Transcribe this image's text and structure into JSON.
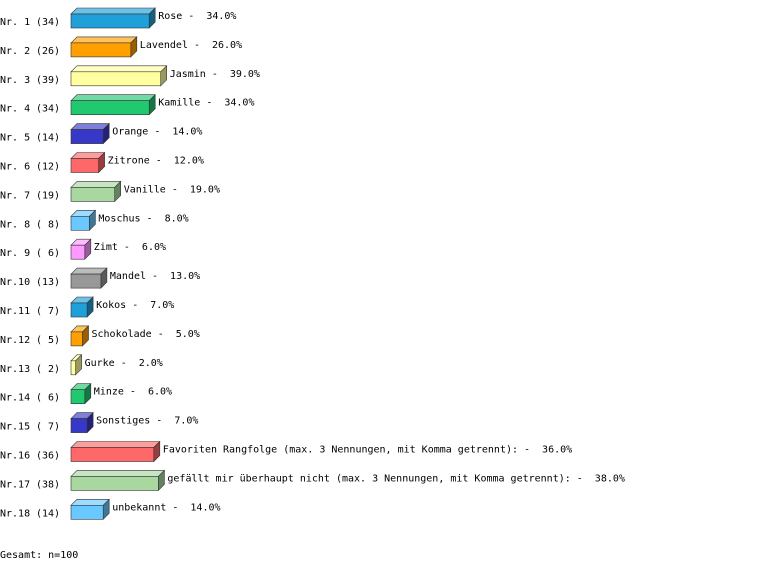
{
  "chart_data": {
    "type": "hbar3d",
    "categories": [
      "Nr. 1",
      "Nr. 2",
      "Nr. 3",
      "Nr. 4",
      "Nr. 5",
      "Nr. 6",
      "Nr. 7",
      "Nr. 8",
      "Nr. 9",
      "Nr.10",
      "Nr.11",
      "Nr.12",
      "Nr.13",
      "Nr.14",
      "Nr.15",
      "Nr.16",
      "Nr.17",
      "Nr.18"
    ],
    "count_labels": [
      "(34)",
      "(26)",
      "(39)",
      "(34)",
      "(14)",
      "(12)",
      "(19)",
      "( 8)",
      "( 6)",
      "(13)",
      "( 7)",
      "( 5)",
      "( 2)",
      "( 6)",
      "( 7)",
      "(36)",
      "(38)",
      "(14)"
    ],
    "names": [
      "Rose",
      "Lavendel",
      "Jasmin",
      "Kamille",
      "Orange",
      "Zitrone",
      "Vanille",
      "Moschus",
      "Zimt",
      "Mandel",
      "Kokos",
      "Schokolade",
      "Gurke",
      "Minze",
      "Sonstiges",
      "Favoriten Rangfolge (max. 3 Nennungen, mit Komma getrennt):",
      "gefällt mir überhaupt nicht (max. 3 Nennungen, mit Komma getrennt):",
      "unbekannt"
    ],
    "separator": "-",
    "values": [
      34,
      26,
      39,
      34,
      14,
      12,
      19,
      8,
      6,
      13,
      7,
      5,
      2,
      6,
      7,
      36,
      38,
      14
    ],
    "value_labels": [
      "34.0%",
      "26.0%",
      "39.0%",
      "34.0%",
      "14.0%",
      "12.0%",
      "19.0%",
      "8.0%",
      "6.0%",
      "13.0%",
      "7.0%",
      "5.0%",
      "2.0%",
      "6.0%",
      "7.0%",
      "36.0%",
      "38.0%",
      "14.0%"
    ],
    "colors": [
      "#1fa0d8",
      "#ff9f00",
      "#ffffa0",
      "#20c870",
      "#3838c8",
      "#ff6868",
      "#a8d8a0",
      "#68c8ff",
      "#ff98ff",
      "#989898",
      "#1fa0d8",
      "#ff9f00",
      "#ffffa0",
      "#20c870",
      "#3838c8",
      "#ff6868",
      "#a8d8a0",
      "#68c8ff"
    ],
    "footer": "Gesamt: n=100"
  }
}
